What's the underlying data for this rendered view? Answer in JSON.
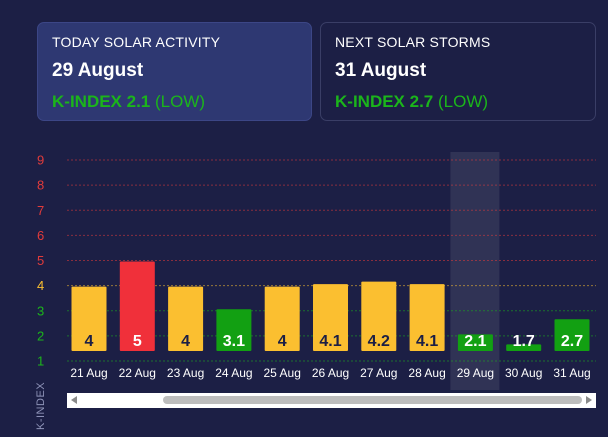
{
  "cards": {
    "today": {
      "title": "TODAY SOLAR ACTIVITY",
      "date": "29 August",
      "kindex": "K-INDEX 2.1",
      "level": "(LOW)"
    },
    "next": {
      "title": "NEXT SOLAR STORMS",
      "date": "31 August",
      "kindex": "K-INDEX 2.7",
      "level": "(LOW)"
    }
  },
  "chart_data": {
    "type": "bar",
    "ylabel": "K-INDEX",
    "ylim": [
      1,
      9
    ],
    "yticks": [
      "1",
      "2",
      "3",
      "4",
      "5",
      "6",
      "7",
      "8",
      "9"
    ],
    "categories": [
      "21 Aug",
      "22 Aug",
      "23 Aug",
      "24 Aug",
      "25 Aug",
      "26 Aug",
      "27 Aug",
      "28 Aug",
      "29 Aug",
      "30 Aug",
      "31 Aug"
    ],
    "values": [
      4,
      5,
      4,
      3.1,
      4,
      4.1,
      4.2,
      4.1,
      2.1,
      1.7,
      2.7
    ],
    "labels": [
      "4",
      "5",
      "4",
      "3.1",
      "4",
      "4.1",
      "4.2",
      "4.1",
      "2.1",
      "1.7",
      "2.7"
    ],
    "highlight_category": "29 Aug",
    "colors": {
      "low": "#12a012",
      "moderate": "#fbbf30",
      "storm": "#f0303a",
      "tick_low": "#1bb51b",
      "tick_moderate": "#fbbf30",
      "tick_storm": "#e23b3b"
    }
  }
}
